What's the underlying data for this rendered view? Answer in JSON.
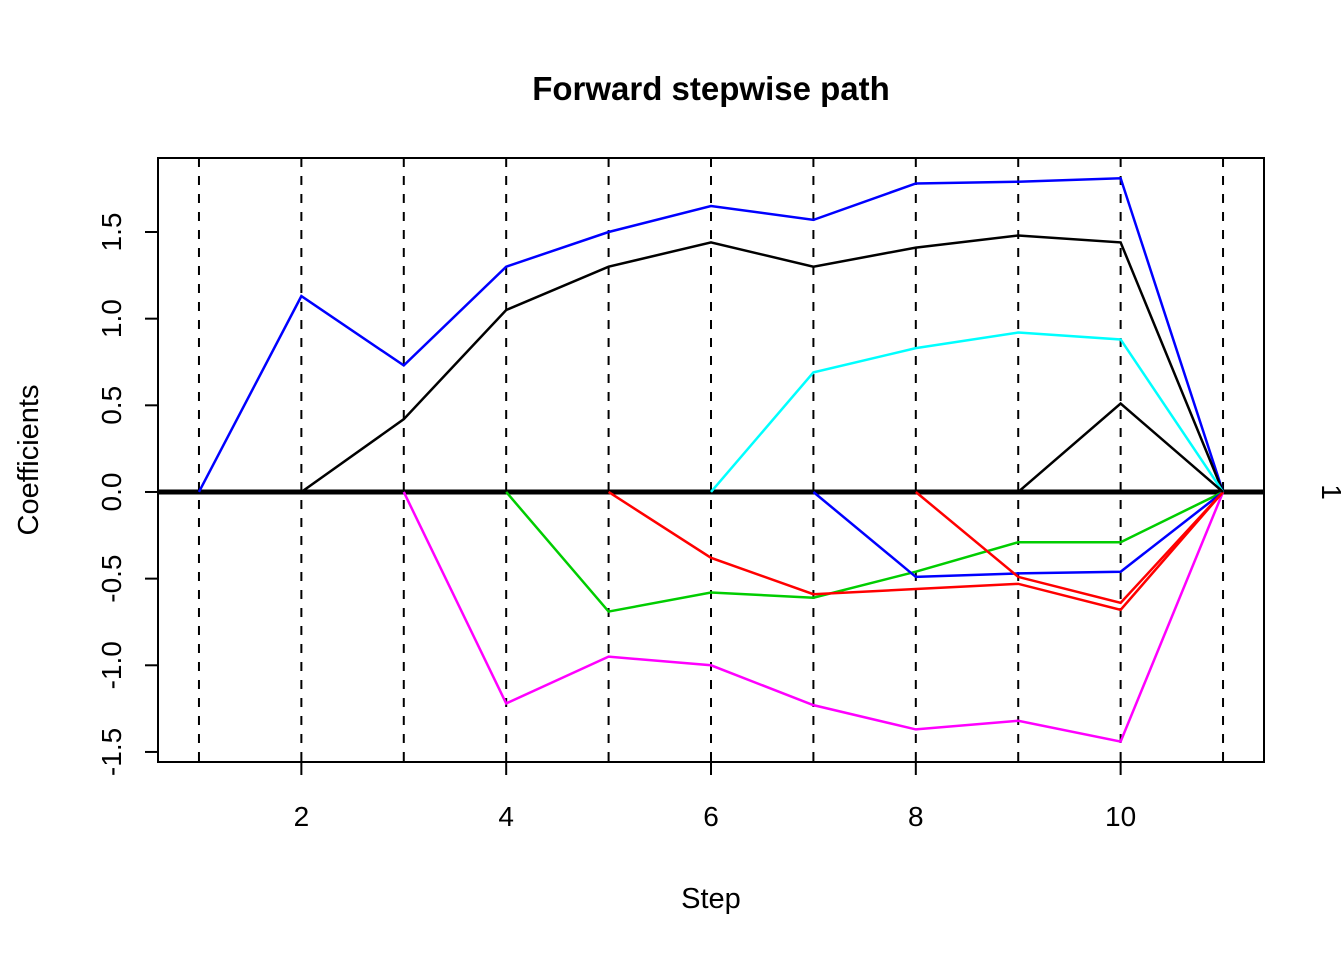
{
  "title": "Forward stepwise path",
  "right_axis": {
    "label": "1"
  },
  "chart_data": {
    "type": "line",
    "title": "Forward stepwise path",
    "xlabel": "Step",
    "ylabel": "Coefficients",
    "xlim": [
      0.6,
      11.4
    ],
    "ylim": [
      -1.558,
      1.927
    ],
    "x_tick_labels": [
      "2",
      "4",
      "6",
      "8",
      "10"
    ],
    "y_tick_labels": [
      "-1.5",
      "-1.0",
      "-0.5",
      "0.0",
      "0.5",
      "1.0",
      "1.5"
    ],
    "grid": "dashed-vertical-lines-at-each-step",
    "guide_lines_x": [
      1,
      2,
      3,
      4,
      5,
      6,
      7,
      8,
      9,
      10,
      11
    ],
    "zero_line": true,
    "legend": "none",
    "series": [
      {
        "name": "coef-entered-step-1-blue",
        "color": "#0000FF",
        "x": [
          1,
          2,
          3,
          4,
          5,
          6,
          7,
          8,
          9,
          10,
          11
        ],
        "y": [
          0,
          1.13,
          0.73,
          1.3,
          1.5,
          1.65,
          1.57,
          1.78,
          1.79,
          1.81,
          0
        ]
      },
      {
        "name": "coef-entered-step-2-black",
        "color": "#000000",
        "x": [
          2,
          3,
          4,
          5,
          6,
          7,
          8,
          9,
          10,
          11
        ],
        "y": [
          0,
          0.42,
          1.05,
          1.3,
          1.44,
          1.3,
          1.41,
          1.48,
          1.44,
          0
        ]
      },
      {
        "name": "coef-entered-step-3-magenta",
        "color": "#FF00FF",
        "x": [
          3,
          4,
          5,
          6,
          7,
          8,
          9,
          10,
          11
        ],
        "y": [
          0,
          -1.22,
          -0.95,
          -1.0,
          -1.23,
          -1.37,
          -1.32,
          -1.44,
          0
        ]
      },
      {
        "name": "coef-entered-step-4-green",
        "color": "#00CD00",
        "x": [
          4,
          5,
          6,
          7,
          8,
          9,
          10,
          11
        ],
        "y": [
          0,
          -0.69,
          -0.58,
          -0.61,
          -0.46,
          -0.29,
          -0.29,
          0
        ]
      },
      {
        "name": "coef-entered-step-5-red",
        "color": "#FF0000",
        "x": [
          5,
          6,
          7,
          8,
          9,
          10,
          11
        ],
        "y": [
          0,
          -0.38,
          -0.59,
          -0.56,
          -0.53,
          -0.68,
          0
        ]
      },
      {
        "name": "coef-entered-step-6-cyan",
        "color": "#00FFFF",
        "x": [
          6,
          7,
          8,
          9,
          10,
          11
        ],
        "y": [
          0,
          0.69,
          0.83,
          0.92,
          0.88,
          0
        ]
      },
      {
        "name": "coef-entered-step-7-blue",
        "color": "#0000FF",
        "x": [
          7,
          8,
          9,
          10,
          11
        ],
        "y": [
          0,
          -0.49,
          -0.47,
          -0.46,
          0
        ]
      },
      {
        "name": "coef-entered-step-8-red",
        "color": "#FF0000",
        "x": [
          8,
          9,
          10,
          11
        ],
        "y": [
          0,
          -0.49,
          -0.64,
          0
        ]
      },
      {
        "name": "coef-entered-step-9-black",
        "color": "#000000",
        "x": [
          9,
          10,
          11
        ],
        "y": [
          0,
          0.51,
          0
        ]
      }
    ]
  }
}
